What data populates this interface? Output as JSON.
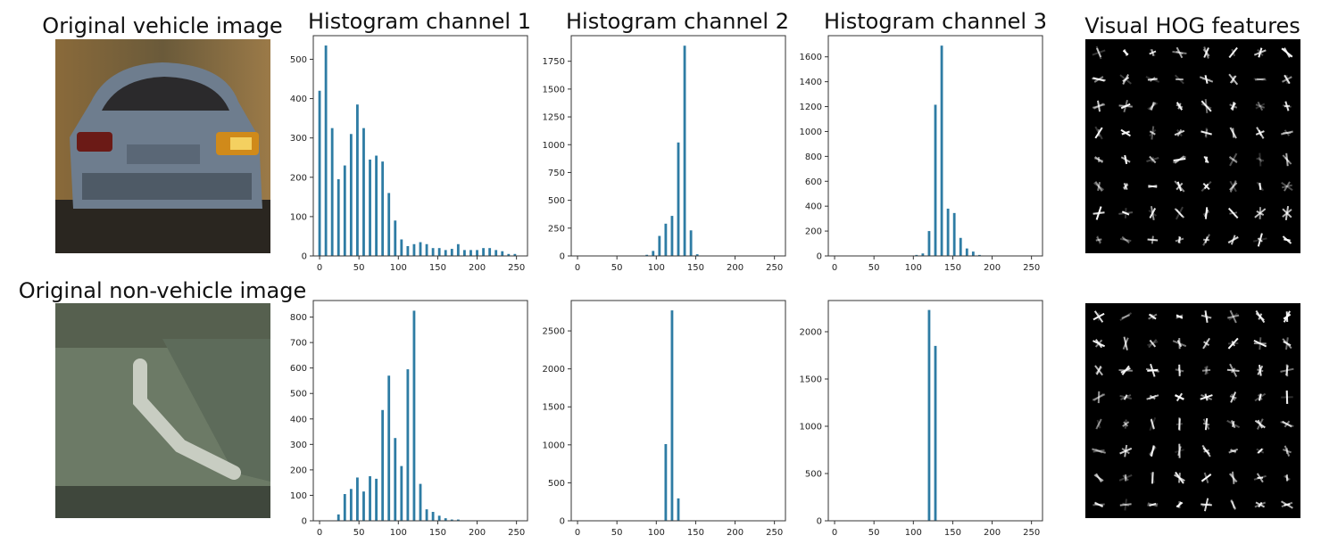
{
  "titles": {
    "vehicle_image": "Original vehicle image",
    "nonvehicle_image": "Original non-vehicle image",
    "hist1": "Histogram channel 1",
    "hist2": "Histogram channel 2",
    "hist3": "Histogram channel 3",
    "hog": "Visual HOG features"
  },
  "colors": {
    "bar": "#2e7ca4",
    "hog_background": "#000000",
    "hog_line": "#ffffff"
  },
  "chart_data": [
    {
      "type": "bar",
      "row": "vehicle",
      "channel": 1,
      "x": [
        0,
        8,
        16,
        24,
        32,
        40,
        48,
        56,
        64,
        72,
        80,
        88,
        96,
        104,
        112,
        120,
        128,
        136,
        144,
        152,
        160,
        168,
        176,
        184,
        192,
        200,
        208,
        216,
        224,
        232,
        240,
        248
      ],
      "values": [
        420,
        535,
        325,
        195,
        230,
        310,
        385,
        325,
        245,
        255,
        240,
        160,
        90,
        42,
        25,
        30,
        35,
        30,
        20,
        20,
        15,
        18,
        30,
        15,
        15,
        15,
        20,
        20,
        15,
        12,
        5,
        5
      ],
      "xlim": [
        -8,
        264
      ],
      "ylim": [
        0,
        560
      ],
      "xticks": [
        0,
        50,
        100,
        150,
        200,
        250
      ],
      "yticks": [
        0,
        100,
        200,
        300,
        400,
        500
      ]
    },
    {
      "type": "bar",
      "row": "vehicle",
      "channel": 2,
      "x": [
        0,
        8,
        16,
        24,
        32,
        40,
        48,
        56,
        64,
        72,
        80,
        88,
        96,
        104,
        112,
        120,
        128,
        136,
        144,
        152,
        160,
        168,
        176,
        184,
        192,
        200,
        208,
        216,
        224,
        232,
        240,
        248
      ],
      "values": [
        0,
        0,
        0,
        0,
        0,
        0,
        0,
        0,
        0,
        0,
        0,
        10,
        45,
        180,
        290,
        360,
        1020,
        1890,
        230,
        15,
        0,
        0,
        0,
        0,
        0,
        0,
        0,
        0,
        0,
        0,
        0,
        0
      ],
      "xlim": [
        -8,
        264
      ],
      "ylim": [
        0,
        1980
      ],
      "xticks": [
        0,
        50,
        100,
        150,
        200,
        250
      ],
      "yticks": [
        0,
        250,
        500,
        750,
        1000,
        1250,
        1500,
        1750
      ]
    },
    {
      "type": "bar",
      "row": "vehicle",
      "channel": 3,
      "x": [
        0,
        8,
        16,
        24,
        32,
        40,
        48,
        56,
        64,
        72,
        80,
        88,
        96,
        104,
        112,
        120,
        128,
        136,
        144,
        152,
        160,
        168,
        176,
        184,
        192,
        200,
        208,
        216,
        224,
        232,
        240,
        248
      ],
      "values": [
        0,
        0,
        0,
        0,
        0,
        0,
        0,
        0,
        0,
        0,
        0,
        0,
        0,
        8,
        20,
        200,
        1215,
        1690,
        380,
        345,
        145,
        60,
        35,
        8,
        0,
        0,
        0,
        0,
        0,
        0,
        0,
        0
      ],
      "xlim": [
        -8,
        264
      ],
      "ylim": [
        0,
        1770
      ],
      "xticks": [
        0,
        50,
        100,
        150,
        200,
        250
      ],
      "yticks": [
        0,
        200,
        400,
        600,
        800,
        1000,
        1200,
        1400,
        1600
      ]
    },
    {
      "type": "bar",
      "row": "non-vehicle",
      "channel": 1,
      "x": [
        0,
        8,
        16,
        24,
        32,
        40,
        48,
        56,
        64,
        72,
        80,
        88,
        96,
        104,
        112,
        120,
        128,
        136,
        144,
        152,
        160,
        168,
        176,
        184,
        192,
        200,
        208,
        216,
        224,
        232,
        240,
        248
      ],
      "values": [
        0,
        0,
        0,
        25,
        105,
        125,
        170,
        115,
        175,
        165,
        435,
        570,
        325,
        215,
        595,
        825,
        145,
        45,
        35,
        20,
        10,
        5,
        5,
        0,
        0,
        0,
        0,
        0,
        0,
        0,
        0,
        0
      ],
      "xlim": [
        -8,
        264
      ],
      "ylim": [
        0,
        865
      ],
      "xticks": [
        0,
        50,
        100,
        150,
        200,
        250
      ],
      "yticks": [
        0,
        100,
        200,
        300,
        400,
        500,
        600,
        700,
        800
      ]
    },
    {
      "type": "bar",
      "row": "non-vehicle",
      "channel": 2,
      "x": [
        0,
        8,
        16,
        24,
        32,
        40,
        48,
        56,
        64,
        72,
        80,
        88,
        96,
        104,
        112,
        120,
        128,
        136,
        144,
        152,
        160,
        168,
        176,
        184,
        192,
        200,
        208,
        216,
        224,
        232,
        240,
        248
      ],
      "values": [
        0,
        0,
        0,
        0,
        0,
        0,
        0,
        0,
        0,
        0,
        0,
        0,
        0,
        0,
        1010,
        2770,
        295,
        0,
        0,
        0,
        0,
        0,
        0,
        0,
        0,
        0,
        0,
        0,
        0,
        0,
        0,
        0
      ],
      "xlim": [
        -8,
        264
      ],
      "ylim": [
        0,
        2900
      ],
      "xticks": [
        0,
        50,
        100,
        150,
        200,
        250
      ],
      "yticks": [
        0,
        500,
        1000,
        1500,
        2000,
        2500
      ]
    },
    {
      "type": "bar",
      "row": "non-vehicle",
      "channel": 3,
      "x": [
        0,
        8,
        16,
        24,
        32,
        40,
        48,
        56,
        64,
        72,
        80,
        88,
        96,
        104,
        112,
        120,
        128,
        136,
        144,
        152,
        160,
        168,
        176,
        184,
        192,
        200,
        208,
        216,
        224,
        232,
        240,
        248
      ],
      "values": [
        0,
        0,
        0,
        0,
        0,
        0,
        0,
        0,
        0,
        0,
        0,
        0,
        0,
        0,
        0,
        2230,
        1850,
        0,
        0,
        0,
        0,
        0,
        0,
        0,
        0,
        0,
        0,
        0,
        0,
        0,
        0,
        0
      ],
      "xlim": [
        -8,
        264
      ],
      "ylim": [
        0,
        2330
      ],
      "xticks": [
        0,
        50,
        100,
        150,
        200,
        250
      ],
      "yticks": [
        0,
        500,
        1000,
        1500,
        2000
      ]
    }
  ]
}
